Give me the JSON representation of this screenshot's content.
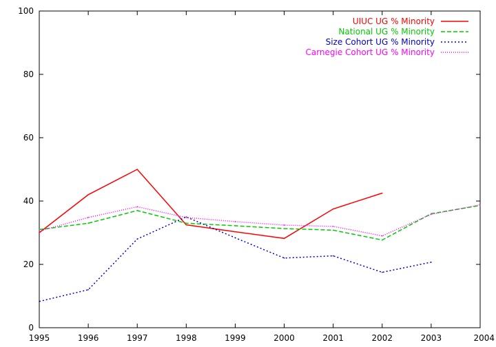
{
  "chart_data": {
    "type": "line",
    "x": [
      1995,
      1996,
      1997,
      1998,
      1999,
      2000,
      2001,
      2002,
      2003,
      2004
    ],
    "xlim": [
      1995,
      2004
    ],
    "ylim": [
      0,
      100
    ],
    "yticks": [
      0,
      20,
      40,
      60,
      80,
      100
    ],
    "xticks": [
      "1995",
      "1996",
      "1997",
      "1998",
      "1999",
      "2000",
      "2001",
      "2002",
      "2003",
      "2004"
    ],
    "grid": false,
    "legend_position": "top-right",
    "series": [
      {
        "name": "UIUC UG % Minority",
        "color": "#ff0000",
        "dash": "solid",
        "values": [
          30,
          42,
          50,
          32.5,
          30.3,
          28.2,
          37.5,
          42.5,
          null,
          null
        ]
      },
      {
        "name": "National UG % Minority",
        "color": "#00cc00",
        "dash": "dashed",
        "values": [
          31,
          33,
          37,
          33,
          32.2,
          31.3,
          30.8,
          27.7,
          36,
          38.6
        ]
      },
      {
        "name": "Size Cohort UG % Minority",
        "color": "#0000cc",
        "dash": "dotted",
        "values": [
          8.3,
          12,
          28,
          35,
          28.4,
          22,
          22.7,
          17.5,
          20.7,
          null
        ]
      },
      {
        "name": "Carnegie Cohort UG % Minority",
        "color": "#ff00ff",
        "dash": "fine-dotted",
        "values": [
          30.5,
          34.8,
          38.2,
          34.8,
          33.5,
          32.4,
          32,
          29,
          35.8,
          38.8
        ]
      }
    ]
  }
}
